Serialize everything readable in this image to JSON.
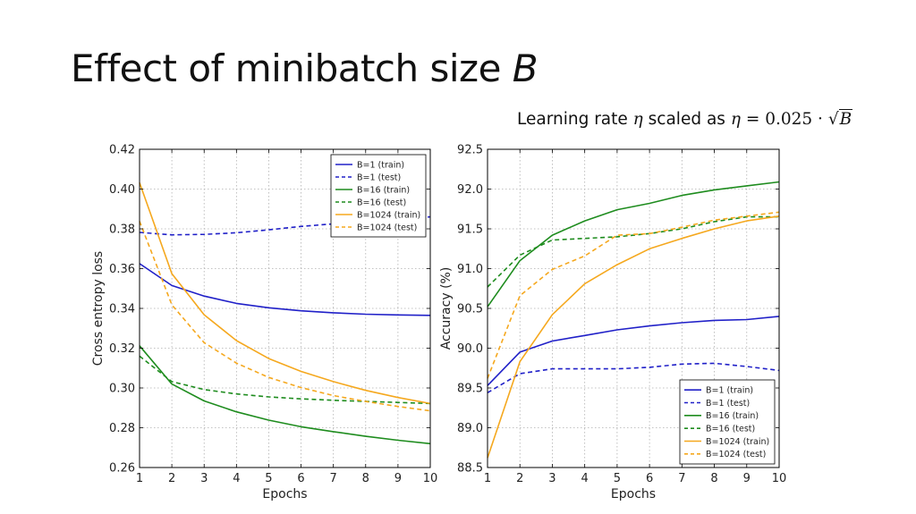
{
  "slide": {
    "title": "Effect of minibatch size",
    "title_var": "B",
    "subtitle_pre": "Learning rate",
    "subtitle_eta": "η",
    "subtitle_mid": "scaled as",
    "subtitle_eta2": "η",
    "subtitle_eq": "= 0.025 ·",
    "subtitle_root": "√",
    "subtitle_B": "B"
  },
  "colors": {
    "B=1": "#2020c8",
    "B=16": "#1e8c1e",
    "B=1024": "#f5a81e"
  },
  "chart_data": [
    {
      "type": "line",
      "xlabel": "Epochs",
      "ylabel": "Cross entropy loss",
      "xlim": [
        1,
        10
      ],
      "ylim": [
        0.26,
        0.42
      ],
      "xticks": [
        1,
        2,
        3,
        4,
        5,
        6,
        7,
        8,
        9,
        10
      ],
      "yticks": [
        "0.26",
        "0.28",
        "0.30",
        "0.32",
        "0.34",
        "0.36",
        "0.38",
        "0.40",
        "0.42"
      ],
      "grid": true,
      "legend_position": "top-right",
      "x": [
        1,
        2,
        3,
        4,
        5,
        6,
        7,
        8,
        9,
        10
      ],
      "series": [
        {
          "name": "B=1 (train)",
          "group": "B=1",
          "style": "solid",
          "values": [
            0.3625,
            0.3515,
            0.3462,
            0.3425,
            0.3403,
            0.3388,
            0.3378,
            0.3371,
            0.3367,
            0.3365
          ]
        },
        {
          "name": "B=1 (test)",
          "group": "B=1",
          "style": "dashed",
          "values": [
            0.3782,
            0.377,
            0.3772,
            0.378,
            0.3795,
            0.3812,
            0.3825,
            0.3838,
            0.385,
            0.386
          ]
        },
        {
          "name": "B=16 (train)",
          "group": "B=16",
          "style": "solid",
          "values": [
            0.3212,
            0.302,
            0.2935,
            0.288,
            0.2838,
            0.2805,
            0.278,
            0.2757,
            0.2737,
            0.272
          ]
        },
        {
          "name": "B=16 (test)",
          "group": "B=16",
          "style": "dashed",
          "values": [
            0.316,
            0.3032,
            0.2992,
            0.297,
            0.2955,
            0.2945,
            0.2938,
            0.2932,
            0.2927,
            0.2922
          ]
        },
        {
          "name": "B=1024 (train)",
          "group": "B=1024",
          "style": "solid",
          "values": [
            0.4032,
            0.3575,
            0.3368,
            0.3238,
            0.3148,
            0.3083,
            0.3032,
            0.2988,
            0.2952,
            0.2922
          ]
        },
        {
          "name": "B=1024 (test)",
          "group": "B=1024",
          "style": "dashed",
          "values": [
            0.3838,
            0.3418,
            0.3228,
            0.3125,
            0.3053,
            0.3002,
            0.2962,
            0.2932,
            0.2907,
            0.2885
          ]
        }
      ]
    },
    {
      "type": "line",
      "xlabel": "Epochs",
      "ylabel": "Accuracy (%)",
      "xlim": [
        1,
        10
      ],
      "ylim": [
        88.5,
        92.5
      ],
      "xticks": [
        1,
        2,
        3,
        4,
        5,
        6,
        7,
        8,
        9,
        10
      ],
      "yticks": [
        "88.5",
        "89.0",
        "89.5",
        "90.0",
        "90.5",
        "91.0",
        "91.5",
        "92.0",
        "92.5"
      ],
      "grid": true,
      "legend_position": "bottom-right",
      "x": [
        1,
        2,
        3,
        4,
        5,
        6,
        7,
        8,
        9,
        10
      ],
      "series": [
        {
          "name": "B=1 (train)",
          "group": "B=1",
          "style": "solid",
          "values": [
            89.53,
            89.95,
            90.09,
            90.16,
            90.23,
            90.28,
            90.32,
            90.35,
            90.36,
            90.4
          ]
        },
        {
          "name": "B=1 (test)",
          "group": "B=1",
          "style": "dashed",
          "values": [
            89.44,
            89.68,
            89.74,
            89.74,
            89.74,
            89.76,
            89.8,
            89.81,
            89.77,
            89.72
          ]
        },
        {
          "name": "B=16 (train)",
          "group": "B=16",
          "style": "solid",
          "values": [
            90.52,
            91.1,
            91.42,
            91.6,
            91.74,
            91.82,
            91.92,
            91.99,
            92.04,
            92.09
          ]
        },
        {
          "name": "B=16 (test)",
          "group": "B=16",
          "style": "dashed",
          "values": [
            90.77,
            91.17,
            91.36,
            91.38,
            91.4,
            91.44,
            91.5,
            91.59,
            91.65,
            91.65
          ]
        },
        {
          "name": "B=1024 (train)",
          "group": "B=1024",
          "style": "solid",
          "values": [
            88.62,
            89.83,
            90.42,
            90.81,
            91.05,
            91.25,
            91.38,
            91.5,
            91.6,
            91.66
          ]
        },
        {
          "name": "B=1024 (test)",
          "group": "B=1024",
          "style": "dashed",
          "values": [
            89.62,
            90.66,
            90.99,
            91.16,
            91.42,
            91.44,
            91.52,
            91.61,
            91.66,
            91.71
          ]
        }
      ]
    }
  ]
}
